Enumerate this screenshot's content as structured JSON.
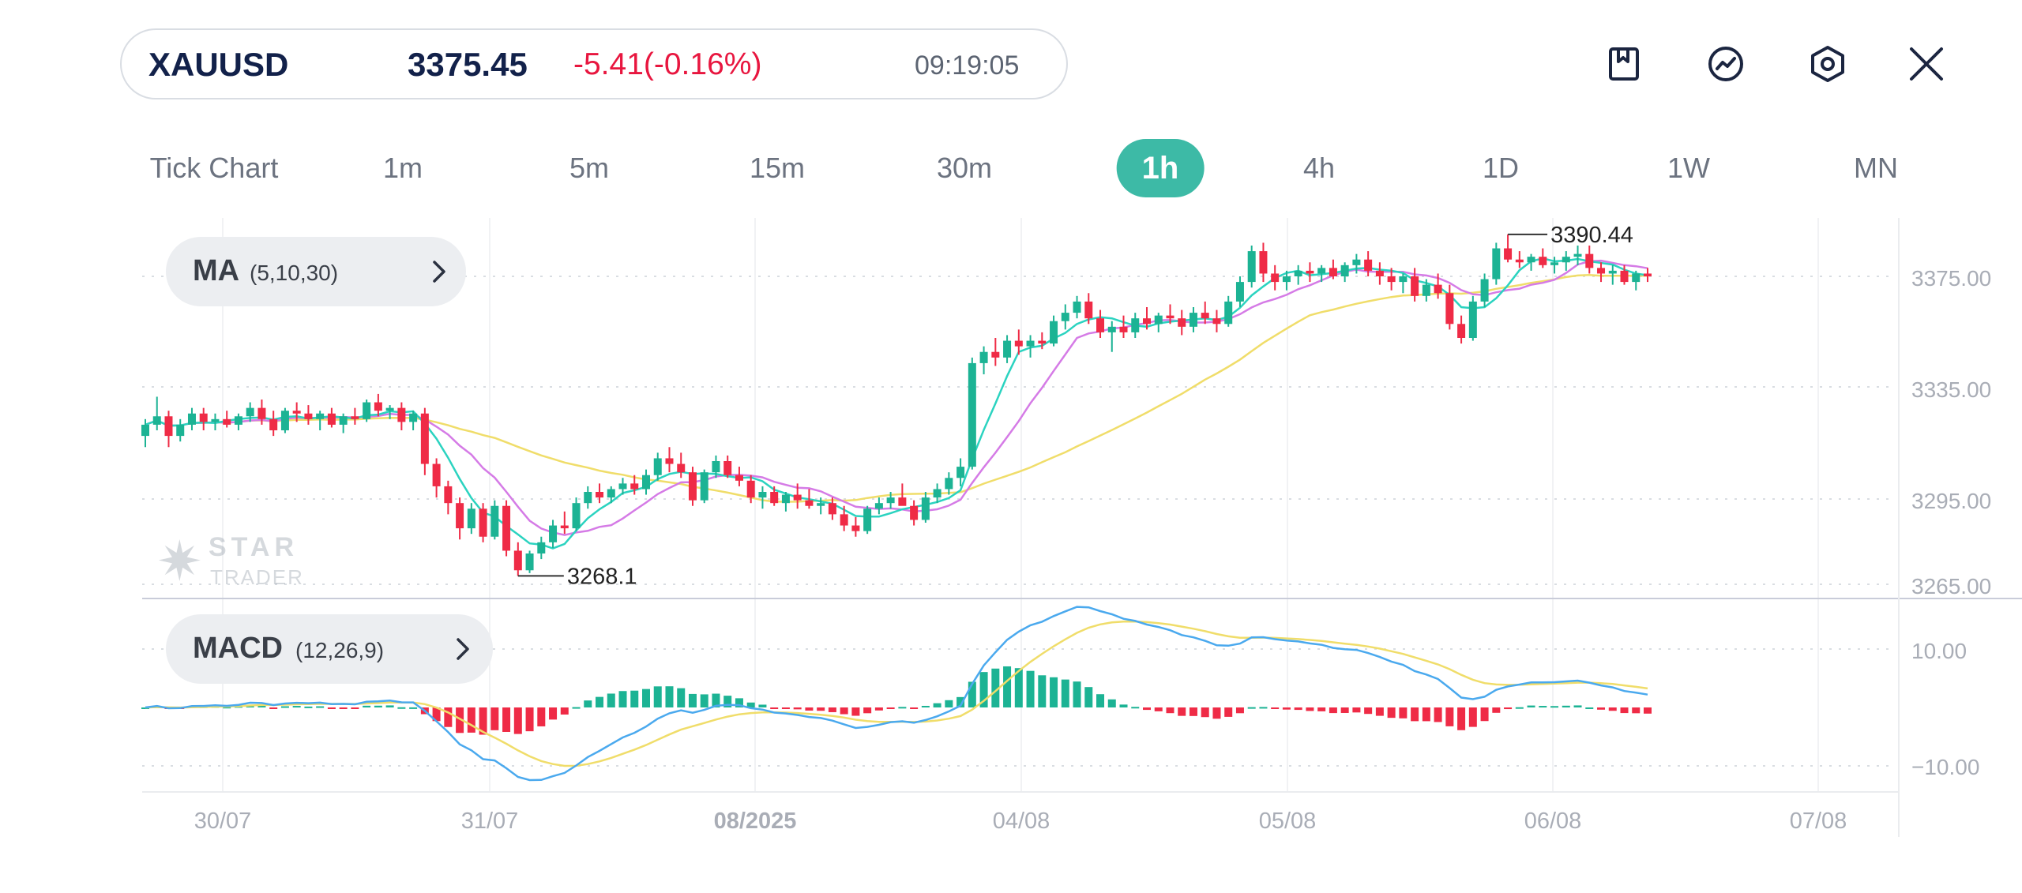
{
  "quote": {
    "symbol": "XAUUSD",
    "price": "3375.45",
    "change": "-5.41(-0.16%)",
    "time": "09:19:05"
  },
  "toolbar": {
    "icons": [
      "bookmark-icon",
      "chart-trend-icon",
      "hexagon-settings-icon",
      "close-icon"
    ]
  },
  "timeframes": [
    {
      "label": "Tick Chart",
      "active": false
    },
    {
      "label": "1m",
      "active": false
    },
    {
      "label": "5m",
      "active": false
    },
    {
      "label": "15m",
      "active": false
    },
    {
      "label": "30m",
      "active": false
    },
    {
      "label": "1h",
      "active": true
    },
    {
      "label": "4h",
      "active": false
    },
    {
      "label": "1D",
      "active": false
    },
    {
      "label": "1W",
      "active": false
    },
    {
      "label": "MN",
      "active": false
    }
  ],
  "indicators": {
    "ma": {
      "name": "MA",
      "params": "(5,10,30)"
    },
    "macd": {
      "name": "MACD",
      "params": "(12,26,9)"
    }
  },
  "watermark": {
    "line1": "STAR",
    "line2": "TRADER"
  },
  "colors": {
    "up": "#1cb394",
    "down": "#ef2b46",
    "ma5": "#2bd3c0",
    "ma10": "#d57be6",
    "ma30": "#f0dd6a",
    "macd_line": "#4aa9ee",
    "signal_line": "#f0dd6a",
    "active_tab": "#3dbaa6",
    "change_text": "#e8163f"
  },
  "chart_data": {
    "type": "candlestick",
    "y_ticks": [
      "3375.00",
      "3335.00",
      "3295.00",
      "3265.00"
    ],
    "ylim": [
      3265,
      3400
    ],
    "x_ticks": [
      "30/07",
      "31/07",
      "08/2025",
      "04/08",
      "05/08",
      "06/08",
      "07/08"
    ],
    "annotations": [
      {
        "label": "3390.44",
        "type": "high"
      },
      {
        "label": "3268.1",
        "type": "low"
      }
    ],
    "candles": [
      [
        3318,
        3324,
        3314,
        3322
      ],
      [
        3322,
        3332,
        3320,
        3325
      ],
      [
        3325,
        3327,
        3314,
        3318
      ],
      [
        3318,
        3324,
        3316,
        3322
      ],
      [
        3322,
        3328,
        3320,
        3326
      ],
      [
        3326,
        3328,
        3320,
        3323
      ],
      [
        3323,
        3326,
        3320,
        3324
      ],
      [
        3324,
        3327,
        3321,
        3322
      ],
      [
        3322,
        3326,
        3320,
        3325
      ],
      [
        3325,
        3330,
        3323,
        3328
      ],
      [
        3328,
        3331,
        3322,
        3324
      ],
      [
        3324,
        3327,
        3318,
        3320
      ],
      [
        3320,
        3328,
        3319,
        3327
      ],
      [
        3327,
        3330,
        3323,
        3326
      ],
      [
        3326,
        3329,
        3322,
        3324
      ],
      [
        3324,
        3327,
        3320,
        3326
      ],
      [
        3326,
        3328,
        3321,
        3322
      ],
      [
        3322,
        3326,
        3319,
        3325
      ],
      [
        3325,
        3328,
        3322,
        3324
      ],
      [
        3324,
        3331,
        3323,
        3330
      ],
      [
        3330,
        3333,
        3325,
        3327
      ],
      [
        3327,
        3329,
        3324,
        3328
      ],
      [
        3328,
        3330,
        3320,
        3323
      ],
      [
        3323,
        3327,
        3320,
        3326
      ],
      [
        3326,
        3328,
        3304,
        3308
      ],
      [
        3308,
        3310,
        3296,
        3300
      ],
      [
        3300,
        3302,
        3290,
        3294
      ],
      [
        3294,
        3296,
        3281,
        3285
      ],
      [
        3285,
        3294,
        3283,
        3292
      ],
      [
        3292,
        3294,
        3280,
        3282
      ],
      [
        3282,
        3295,
        3281,
        3293
      ],
      [
        3293,
        3295,
        3275,
        3277
      ],
      [
        3277,
        3280,
        3268,
        3270
      ],
      [
        3270,
        3277,
        3269,
        3276
      ],
      [
        3276,
        3282,
        3274,
        3280
      ],
      [
        3280,
        3288,
        3278,
        3286
      ],
      [
        3286,
        3291,
        3283,
        3285
      ],
      [
        3285,
        3296,
        3284,
        3294
      ],
      [
        3294,
        3300,
        3292,
        3298
      ],
      [
        3298,
        3301,
        3294,
        3296
      ],
      [
        3296,
        3300,
        3294,
        3299
      ],
      [
        3299,
        3303,
        3297,
        3301
      ],
      [
        3301,
        3304,
        3297,
        3299
      ],
      [
        3299,
        3306,
        3297,
        3304
      ],
      [
        3304,
        3312,
        3302,
        3310
      ],
      [
        3310,
        3314,
        3305,
        3308
      ],
      [
        3308,
        3312,
        3303,
        3305
      ],
      [
        3305,
        3307,
        3293,
        3295
      ],
      [
        3295,
        3306,
        3294,
        3305
      ],
      [
        3305,
        3311,
        3303,
        3309
      ],
      [
        3309,
        3311,
        3303,
        3304
      ],
      [
        3304,
        3307,
        3300,
        3302
      ],
      [
        3302,
        3304,
        3294,
        3296
      ],
      [
        3296,
        3300,
        3292,
        3298
      ],
      [
        3298,
        3300,
        3293,
        3294
      ],
      [
        3294,
        3298,
        3291,
        3297
      ],
      [
        3297,
        3301,
        3292,
        3295
      ],
      [
        3295,
        3299,
        3292,
        3293
      ],
      [
        3293,
        3296,
        3290,
        3294
      ],
      [
        3294,
        3296,
        3288,
        3290
      ],
      [
        3290,
        3293,
        3284,
        3286
      ],
      [
        3286,
        3289,
        3282,
        3284
      ],
      [
        3284,
        3293,
        3283,
        3292
      ],
      [
        3292,
        3296,
        3290,
        3294
      ],
      [
        3294,
        3298,
        3292,
        3296
      ],
      [
        3296,
        3301,
        3294,
        3293
      ],
      [
        3293,
        3295,
        3286,
        3288
      ],
      [
        3288,
        3298,
        3287,
        3296
      ],
      [
        3296,
        3301,
        3294,
        3299
      ],
      [
        3299,
        3305,
        3297,
        3303
      ],
      [
        3303,
        3310,
        3300,
        3307
      ],
      [
        3307,
        3346,
        3306,
        3344
      ],
      [
        3344,
        3350,
        3340,
        3348
      ],
      [
        3348,
        3353,
        3343,
        3346
      ],
      [
        3346,
        3354,
        3344,
        3352
      ],
      [
        3352,
        3356,
        3347,
        3350
      ],
      [
        3350,
        3354,
        3346,
        3352
      ],
      [
        3352,
        3355,
        3349,
        3351
      ],
      [
        3351,
        3361,
        3350,
        3359
      ],
      [
        3359,
        3365,
        3356,
        3362
      ],
      [
        3362,
        3368,
        3360,
        3366
      ],
      [
        3366,
        3369,
        3358,
        3360
      ],
      [
        3360,
        3363,
        3353,
        3355
      ],
      [
        3355,
        3359,
        3348,
        3357
      ],
      [
        3357,
        3361,
        3353,
        3355
      ],
      [
        3355,
        3362,
        3353,
        3360
      ],
      [
        3360,
        3364,
        3356,
        3358
      ],
      [
        3358,
        3362,
        3355,
        3361
      ],
      [
        3361,
        3365,
        3358,
        3360
      ],
      [
        3360,
        3363,
        3354,
        3357
      ],
      [
        3357,
        3364,
        3355,
        3362
      ],
      [
        3362,
        3366,
        3358,
        3360
      ],
      [
        3360,
        3363,
        3355,
        3358
      ],
      [
        3358,
        3368,
        3357,
        3366
      ],
      [
        3366,
        3375,
        3364,
        3373
      ],
      [
        3373,
        3386,
        3371,
        3384
      ],
      [
        3384,
        3387,
        3373,
        3376
      ],
      [
        3376,
        3379,
        3370,
        3373
      ],
      [
        3373,
        3377,
        3370,
        3375
      ],
      [
        3375,
        3379,
        3372,
        3377
      ],
      [
        3377,
        3380,
        3373,
        3376
      ],
      [
        3376,
        3379,
        3373,
        3378
      ],
      [
        3378,
        3381,
        3374,
        3375
      ],
      [
        3375,
        3380,
        3373,
        3379
      ],
      [
        3379,
        3383,
        3376,
        3381
      ],
      [
        3381,
        3384,
        3375,
        3377
      ],
      [
        3377,
        3380,
        3372,
        3375
      ],
      [
        3375,
        3378,
        3370,
        3373
      ],
      [
        3373,
        3376,
        3369,
        3375
      ],
      [
        3375,
        3378,
        3366,
        3368
      ],
      [
        3368,
        3374,
        3366,
        3372
      ],
      [
        3372,
        3376,
        3367,
        3369
      ],
      [
        3369,
        3372,
        3356,
        3358
      ],
      [
        3358,
        3361,
        3351,
        3353
      ],
      [
        3353,
        3368,
        3352,
        3366
      ],
      [
        3366,
        3376,
        3364,
        3374
      ],
      [
        3374,
        3387,
        3372,
        3385
      ],
      [
        3385,
        3390,
        3380,
        3381
      ],
      [
        3381,
        3384,
        3378,
        3380
      ],
      [
        3380,
        3383,
        3377,
        3382
      ],
      [
        3382,
        3385,
        3378,
        3379
      ],
      [
        3379,
        3382,
        3376,
        3380
      ],
      [
        3380,
        3384,
        3377,
        3382
      ],
      [
        3382,
        3386,
        3379,
        3383
      ],
      [
        3383,
        3386,
        3376,
        3378
      ],
      [
        3378,
        3380,
        3373,
        3376
      ],
      [
        3376,
        3379,
        3372,
        3377
      ],
      [
        3377,
        3379,
        3372,
        3373
      ],
      [
        3373,
        3377,
        3370,
        3376
      ],
      [
        3376,
        3378,
        3373,
        3375
      ]
    ]
  }
}
